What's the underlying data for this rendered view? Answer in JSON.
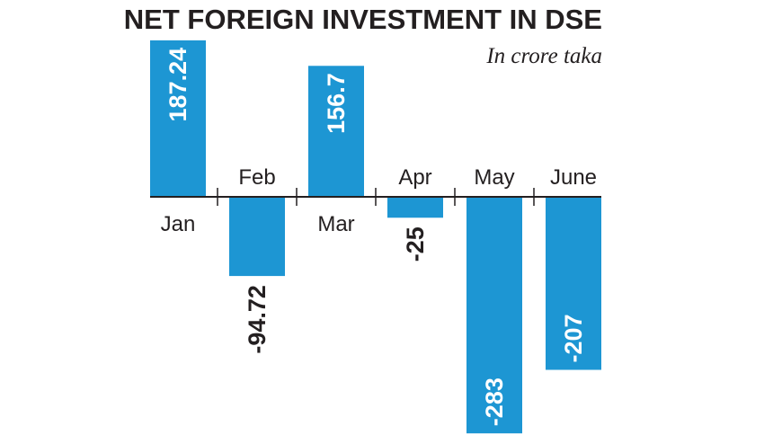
{
  "chart_data": {
    "type": "bar",
    "title": "NET FOREIGN INVESTMENT IN DSE",
    "subtitle": "In crore taka",
    "categories": [
      "Jan",
      "Feb",
      "Mar",
      "Apr",
      "May",
      "June"
    ],
    "values": [
      187.24,
      -94.72,
      156.7,
      -25,
      -283,
      -207
    ],
    "color": "#1d96d3"
  }
}
